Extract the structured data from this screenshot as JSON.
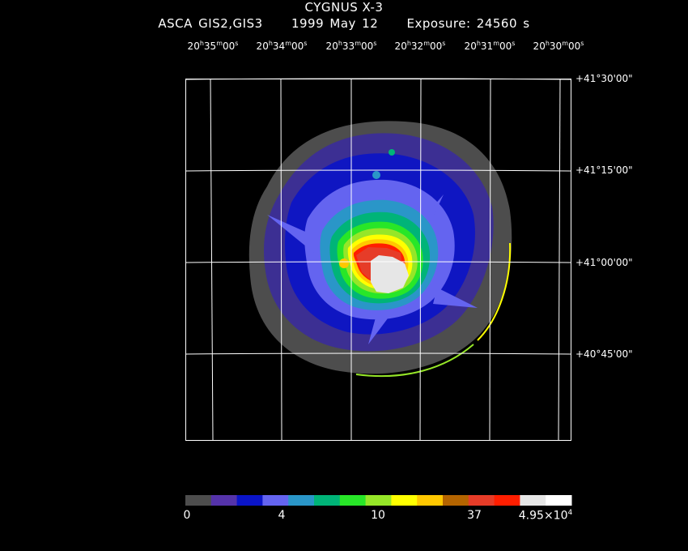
{
  "header": {
    "title": "CYGNUS X-3",
    "instrument": "ASCA GIS2,GIS3",
    "date": "1999 May 12",
    "exposure": "Exposure: 24560 s"
  },
  "ra_axis": {
    "ticks": [
      {
        "h": "20",
        "m": "35",
        "s": "00"
      },
      {
        "h": "20",
        "m": "34",
        "s": "00"
      },
      {
        "h": "20",
        "m": "33",
        "s": "00"
      },
      {
        "h": "20",
        "m": "32",
        "s": "00"
      },
      {
        "h": "20",
        "m": "31",
        "s": "00"
      },
      {
        "h": "20",
        "m": "30",
        "s": "00"
      }
    ]
  },
  "dec_axis": {
    "ticks": [
      "+41°30'00\"",
      "+41°15'00\"",
      "+41°00'00\"",
      "+40°45'00\""
    ]
  },
  "colorbar": {
    "colors": [
      "#4d4d4d",
      "#5533aa",
      "#0a14c8",
      "#6464f0",
      "#2a96c8",
      "#00b478",
      "#28e628",
      "#96e628",
      "#ffff00",
      "#ffc800",
      "#b46400",
      "#e63c28",
      "#ff1e00",
      "#e6e6e6",
      "#ffffff"
    ],
    "labels": {
      "l0": "0",
      "l1": "4",
      "l2": "10",
      "l3": "37",
      "l4_mant": "4.95×10",
      "l4_exp": "4"
    }
  }
}
